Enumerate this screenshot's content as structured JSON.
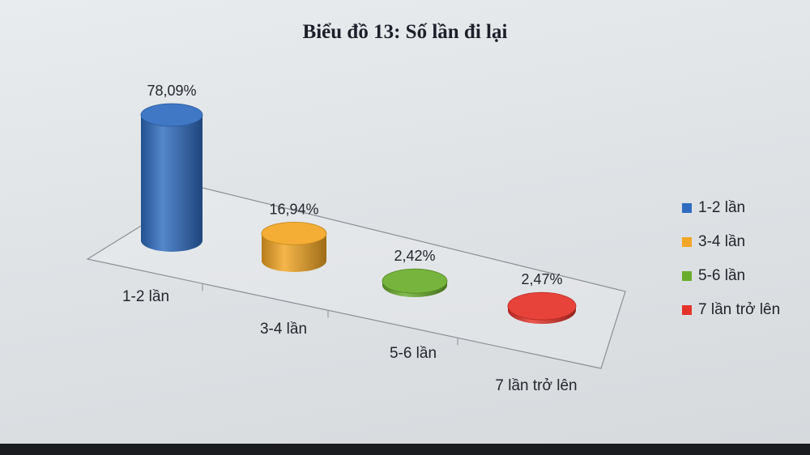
{
  "chart_data": {
    "type": "bar",
    "title": "Biểu đồ 13: Số lần đi lại",
    "categories": [
      "1-2 lần",
      "3-4 lần",
      "5-6 lần",
      "7 lần trở lên"
    ],
    "values": [
      78.09,
      16.94,
      2.42,
      2.47
    ],
    "value_labels": [
      "78,09%",
      "16,94%",
      "2,42%",
      "2,47%"
    ],
    "colors": [
      "#2f6cc0",
      "#f3a623",
      "#6aad2c",
      "#e5332a"
    ],
    "legend": {
      "position": "right",
      "entries": [
        "1-2 lần",
        "3-4 lần",
        "5-6 lần",
        "7 lần trở lên"
      ]
    },
    "ylim": [
      0,
      80
    ],
    "grid": false
  }
}
